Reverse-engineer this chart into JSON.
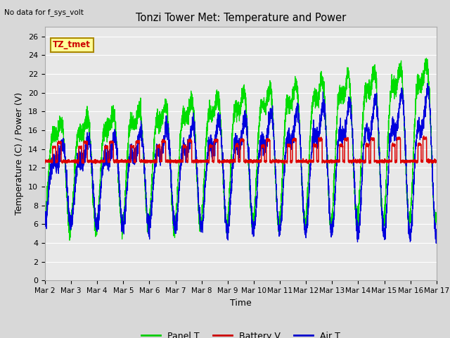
{
  "title": "Tonzi Tower Met: Temperature and Power",
  "top_left_text": "No data for f_sys_volt",
  "xlabel": "Time",
  "ylabel": "Temperature (C) / Power (V)",
  "ylim": [
    0,
    27
  ],
  "yticks": [
    0,
    2,
    4,
    6,
    8,
    10,
    12,
    14,
    16,
    18,
    20,
    22,
    24,
    26
  ],
  "xtick_labels": [
    "Mar 2",
    "Mar 3",
    "Mar 4",
    "Mar 5",
    "Mar 6",
    "Mar 7",
    "Mar 8",
    "Mar 9",
    "Mar 10",
    "Mar 11",
    "Mar 12",
    "Mar 13",
    "Mar 14",
    "Mar 15",
    "Mar 16",
    "Mar 17"
  ],
  "legend_entries": [
    "Panel T",
    "Battery V",
    "Air T"
  ],
  "legend_colors": [
    "#00cc00",
    "#cc0000",
    "#0000cc"
  ],
  "line_colors": {
    "panel": "#00dd00",
    "battery": "#dd0000",
    "air": "#0000dd"
  },
  "annotation_label": "TZ_tmet",
  "annotation_color": "#cc0000",
  "annotation_bg": "#ffff99",
  "annotation_border": "#aa8800",
  "fig_bg_color": "#d8d8d8",
  "plot_bg_color": "#e8e8e8",
  "grid_color": "#ffffff"
}
